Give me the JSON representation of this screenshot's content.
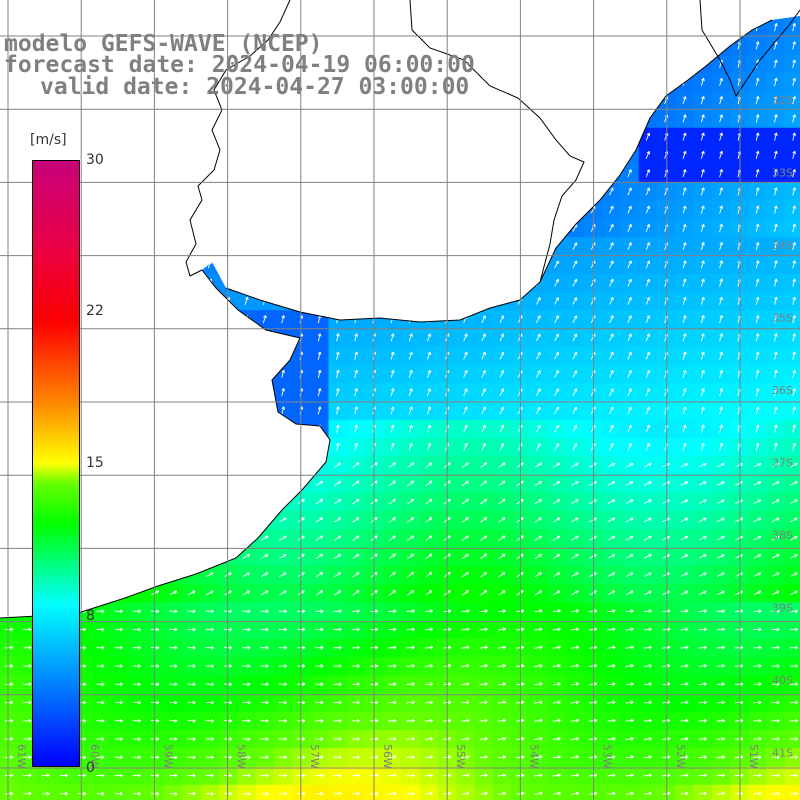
{
  "titles": {
    "line1": "modelo GEFS-WAVE (NCEP)",
    "line2": "forecast date: 2024-04-19 06:00:00",
    "line3": "valid date: 2024-04-27 03:00:00"
  },
  "legend": {
    "unit": "[m/s]",
    "ticks": [
      "30",
      "22",
      "15",
      "8",
      "0"
    ],
    "colors": [
      "#0000ff",
      "#00ffff",
      "#00ff00",
      "#ffff00",
      "#ff8800",
      "#ff0000",
      "#c8007a"
    ]
  },
  "axes": {
    "lat_labels": [
      "32S",
      "33S",
      "34S",
      "35S",
      "36S",
      "37S",
      "38S",
      "39S",
      "40S",
      "41S"
    ],
    "lon_labels": [
      "61W",
      "60W",
      "59W",
      "58W",
      "57W",
      "56W",
      "55W",
      "54W",
      "53W",
      "52W",
      "51W"
    ]
  },
  "colors": {
    "land": "#ffffff",
    "coast": "#000000",
    "grid": "#808080",
    "arrow": "#ffffff",
    "label": "#808080"
  }
}
